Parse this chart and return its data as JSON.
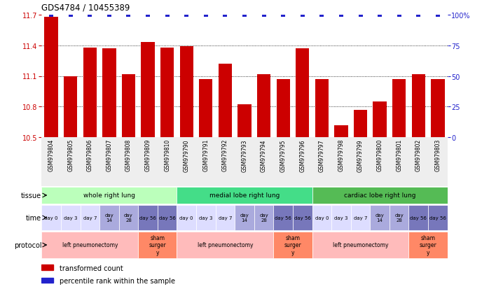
{
  "title": "GDS4784 / 10455389",
  "samples": [
    "GSM979804",
    "GSM979805",
    "GSM979806",
    "GSM979807",
    "GSM979808",
    "GSM979809",
    "GSM979810",
    "GSM979790",
    "GSM979791",
    "GSM979792",
    "GSM979793",
    "GSM979794",
    "GSM979795",
    "GSM979796",
    "GSM979797",
    "GSM979798",
    "GSM979799",
    "GSM979800",
    "GSM979801",
    "GSM979802",
    "GSM979803"
  ],
  "bar_values": [
    11.68,
    11.1,
    11.38,
    11.37,
    11.12,
    11.43,
    11.38,
    11.39,
    11.07,
    11.22,
    10.82,
    11.12,
    11.07,
    11.37,
    11.07,
    10.62,
    10.77,
    10.85,
    11.07,
    11.12,
    11.07
  ],
  "percentile_values": [
    100,
    100,
    100,
    100,
    100,
    100,
    100,
    100,
    100,
    100,
    100,
    100,
    100,
    100,
    100,
    100,
    100,
    100,
    100,
    100,
    100
  ],
  "ylim_left": [
    10.5,
    11.7
  ],
  "ylim_right": [
    0,
    100
  ],
  "yticks_left": [
    10.5,
    10.8,
    11.1,
    11.4,
    11.7
  ],
  "yticks_right": [
    0,
    25,
    50,
    75,
    100
  ],
  "ytick_labels_left": [
    "10.5",
    "10.8",
    "11.1",
    "11.4",
    "11.7"
  ],
  "ytick_labels_right": [
    "0",
    "25",
    "50",
    "75",
    "100%"
  ],
  "bar_color": "#cc0000",
  "dot_color": "#2222cc",
  "tissue_groups": [
    {
      "label": "whole right lung",
      "start": 0,
      "end": 6,
      "color": "#bbffbb"
    },
    {
      "label": "medial lobe right lung",
      "start": 7,
      "end": 13,
      "color": "#44dd88"
    },
    {
      "label": "cardiac lobe right lung",
      "start": 14,
      "end": 20,
      "color": "#55bb55"
    }
  ],
  "time_color_map": {
    "0": "#ddddff",
    "1": "#ddddff",
    "2": "#ddddff",
    "3": "#aaaadd",
    "4": "#aaaadd",
    "5": "#7777bb",
    "6": "#7777bb",
    "7": "#ddddff",
    "8": "#ddddff",
    "9": "#ddddff",
    "10": "#aaaadd",
    "11": "#aaaadd",
    "12": "#7777bb",
    "13": "#7777bb",
    "14": "#ddddff",
    "15": "#ddddff",
    "16": "#ddddff",
    "17": "#aaaadd",
    "18": "#aaaadd",
    "19": "#7777bb",
    "20": "#7777bb"
  },
  "time_label_map": {
    "0": "day 0",
    "1": "day 3",
    "2": "day 7",
    "3": "day\n14",
    "4": "day\n28",
    "5": "day 56",
    "6": "day 56",
    "7": "day 0",
    "8": "day 3",
    "9": "day 7",
    "10": "day\n14",
    "11": "day\n28",
    "12": "day 56",
    "13": "day 56",
    "14": "day 0",
    "15": "day 3",
    "16": "day 7",
    "17": "day\n14",
    "18": "day\n28",
    "19": "day 56",
    "20": "day 56"
  },
  "protocol_groups": [
    {
      "label": "left pneumonectomy",
      "start": 0,
      "end": 4,
      "color": "#ffbbbb"
    },
    {
      "label": "sham\nsurger\ny",
      "start": 5,
      "end": 6,
      "color": "#ff8866"
    },
    {
      "label": "left pneumonectomy",
      "start": 7,
      "end": 11,
      "color": "#ffbbbb"
    },
    {
      "label": "sham\nsurger\ny",
      "start": 12,
      "end": 13,
      "color": "#ff8866"
    },
    {
      "label": "left pneumonectomy",
      "start": 14,
      "end": 18,
      "color": "#ffbbbb"
    },
    {
      "label": "sham\nsurger\ny",
      "start": 19,
      "end": 20,
      "color": "#ff8866"
    }
  ],
  "background_color": "#ffffff"
}
